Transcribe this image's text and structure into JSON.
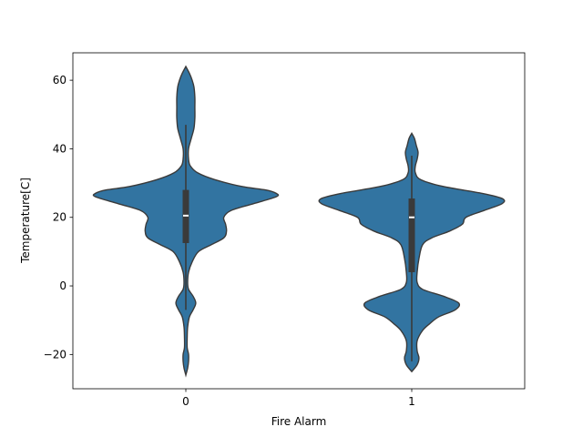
{
  "chart_data": {
    "type": "violin",
    "title": "",
    "xlabel": "Fire Alarm",
    "ylabel": "Temperature[C]",
    "categories": [
      "0",
      "1"
    ],
    "ylim": [
      -30,
      68
    ],
    "yticks": [
      -20,
      0,
      20,
      40,
      60
    ],
    "grid": false,
    "legend": "none",
    "color": "#3274a1",
    "edge_color": "#3a3a3a",
    "violins": [
      {
        "category": "0",
        "y_min": -26.0,
        "y_max": 64.0,
        "density_profile": [
          [
            -26.0,
            0.0
          ],
          [
            -24.0,
            0.02
          ],
          [
            -22.0,
            0.03
          ],
          [
            -20.0,
            0.03
          ],
          [
            -18.0,
            0.015
          ],
          [
            -15.0,
            0.015
          ],
          [
            -12.0,
            0.02
          ],
          [
            -9.0,
            0.04
          ],
          [
            -7.0,
            0.08
          ],
          [
            -5.0,
            0.11
          ],
          [
            -3.0,
            0.08
          ],
          [
            -1.0,
            0.03
          ],
          [
            1.0,
            0.02
          ],
          [
            4.0,
            0.03
          ],
          [
            7.0,
            0.07
          ],
          [
            10.0,
            0.14
          ],
          [
            12.0,
            0.28
          ],
          [
            14.0,
            0.42
          ],
          [
            16.0,
            0.45
          ],
          [
            18.0,
            0.44
          ],
          [
            20.0,
            0.42
          ],
          [
            22.0,
            0.5
          ],
          [
            24.0,
            0.75
          ],
          [
            26.0,
            1.0
          ],
          [
            27.0,
            1.0
          ],
          [
            28.0,
            0.88
          ],
          [
            29.0,
            0.62
          ],
          [
            31.0,
            0.32
          ],
          [
            33.0,
            0.13
          ],
          [
            35.0,
            0.05
          ],
          [
            37.0,
            0.03
          ],
          [
            40.0,
            0.03
          ],
          [
            43.0,
            0.06
          ],
          [
            46.0,
            0.09
          ],
          [
            49.0,
            0.1
          ],
          [
            52.0,
            0.1
          ],
          [
            55.0,
            0.1
          ],
          [
            58.0,
            0.09
          ],
          [
            60.0,
            0.07
          ],
          [
            62.0,
            0.04
          ],
          [
            64.0,
            0.0
          ]
        ],
        "q1": 12.5,
        "median": 20.5,
        "q3": 28.0,
        "whisker_low": -7.0,
        "whisker_high": 47.0
      },
      {
        "category": "1",
        "y_min": -25.0,
        "y_max": 44.5,
        "density_profile": [
          [
            -25.0,
            0.0
          ],
          [
            -23.0,
            0.06
          ],
          [
            -21.0,
            0.08
          ],
          [
            -19.0,
            0.06
          ],
          [
            -16.0,
            0.06
          ],
          [
            -13.0,
            0.12
          ],
          [
            -11.0,
            0.2
          ],
          [
            -9.0,
            0.3
          ],
          [
            -7.0,
            0.48
          ],
          [
            -5.0,
            0.52
          ],
          [
            -3.0,
            0.35
          ],
          [
            -1.0,
            0.12
          ],
          [
            1.0,
            0.06
          ],
          [
            4.0,
            0.06
          ],
          [
            8.0,
            0.08
          ],
          [
            12.0,
            0.12
          ],
          [
            14.0,
            0.22
          ],
          [
            16.0,
            0.42
          ],
          [
            18.0,
            0.56
          ],
          [
            20.0,
            0.6
          ],
          [
            22.0,
            0.8
          ],
          [
            24.0,
            1.0
          ],
          [
            25.5,
            1.0
          ],
          [
            27.0,
            0.78
          ],
          [
            29.0,
            0.35
          ],
          [
            31.0,
            0.1
          ],
          [
            33.0,
            0.04
          ],
          [
            35.0,
            0.04
          ],
          [
            37.0,
            0.06
          ],
          [
            39.0,
            0.07
          ],
          [
            41.0,
            0.05
          ],
          [
            43.0,
            0.03
          ],
          [
            44.5,
            0.0
          ]
        ],
        "q1": 4.0,
        "median": 20.0,
        "q3": 25.5,
        "whisker_low": -22.0,
        "whisker_high": 38.0
      }
    ]
  }
}
